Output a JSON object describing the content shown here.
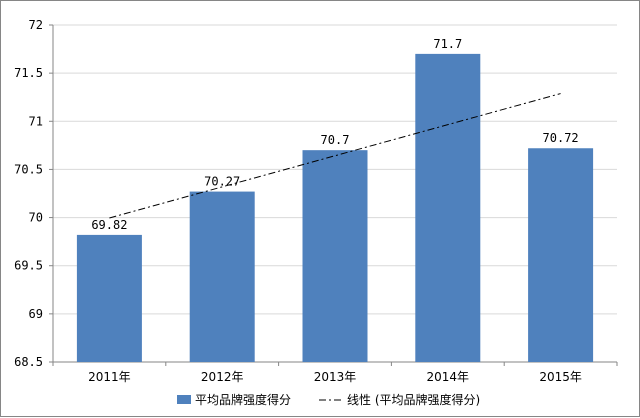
{
  "chart_data": {
    "type": "bar",
    "categories": [
      "2011年",
      "2012年",
      "2013年",
      "2014年",
      "2015年"
    ],
    "series": [
      {
        "name": "平均品牌强度得分",
        "values": [
          69.82,
          70.27,
          70.7,
          71.7,
          70.72
        ],
        "color": "#4f81bd"
      }
    ],
    "data_labels": [
      "69.82",
      "70.27",
      "70.7",
      "71.7",
      "70.72"
    ],
    "trendline": {
      "type": "linear",
      "style": "dash-dot",
      "color": "#000000",
      "name": "线性 (平均品牌强度得分)"
    },
    "y_ticks": [
      "68.5",
      "69",
      "69.5",
      "70",
      "70.5",
      "71",
      "71.5",
      "72"
    ],
    "ylim": [
      68.5,
      72
    ],
    "grid": true,
    "legend": "bottom",
    "title": "",
    "xlabel": "",
    "ylabel": ""
  }
}
